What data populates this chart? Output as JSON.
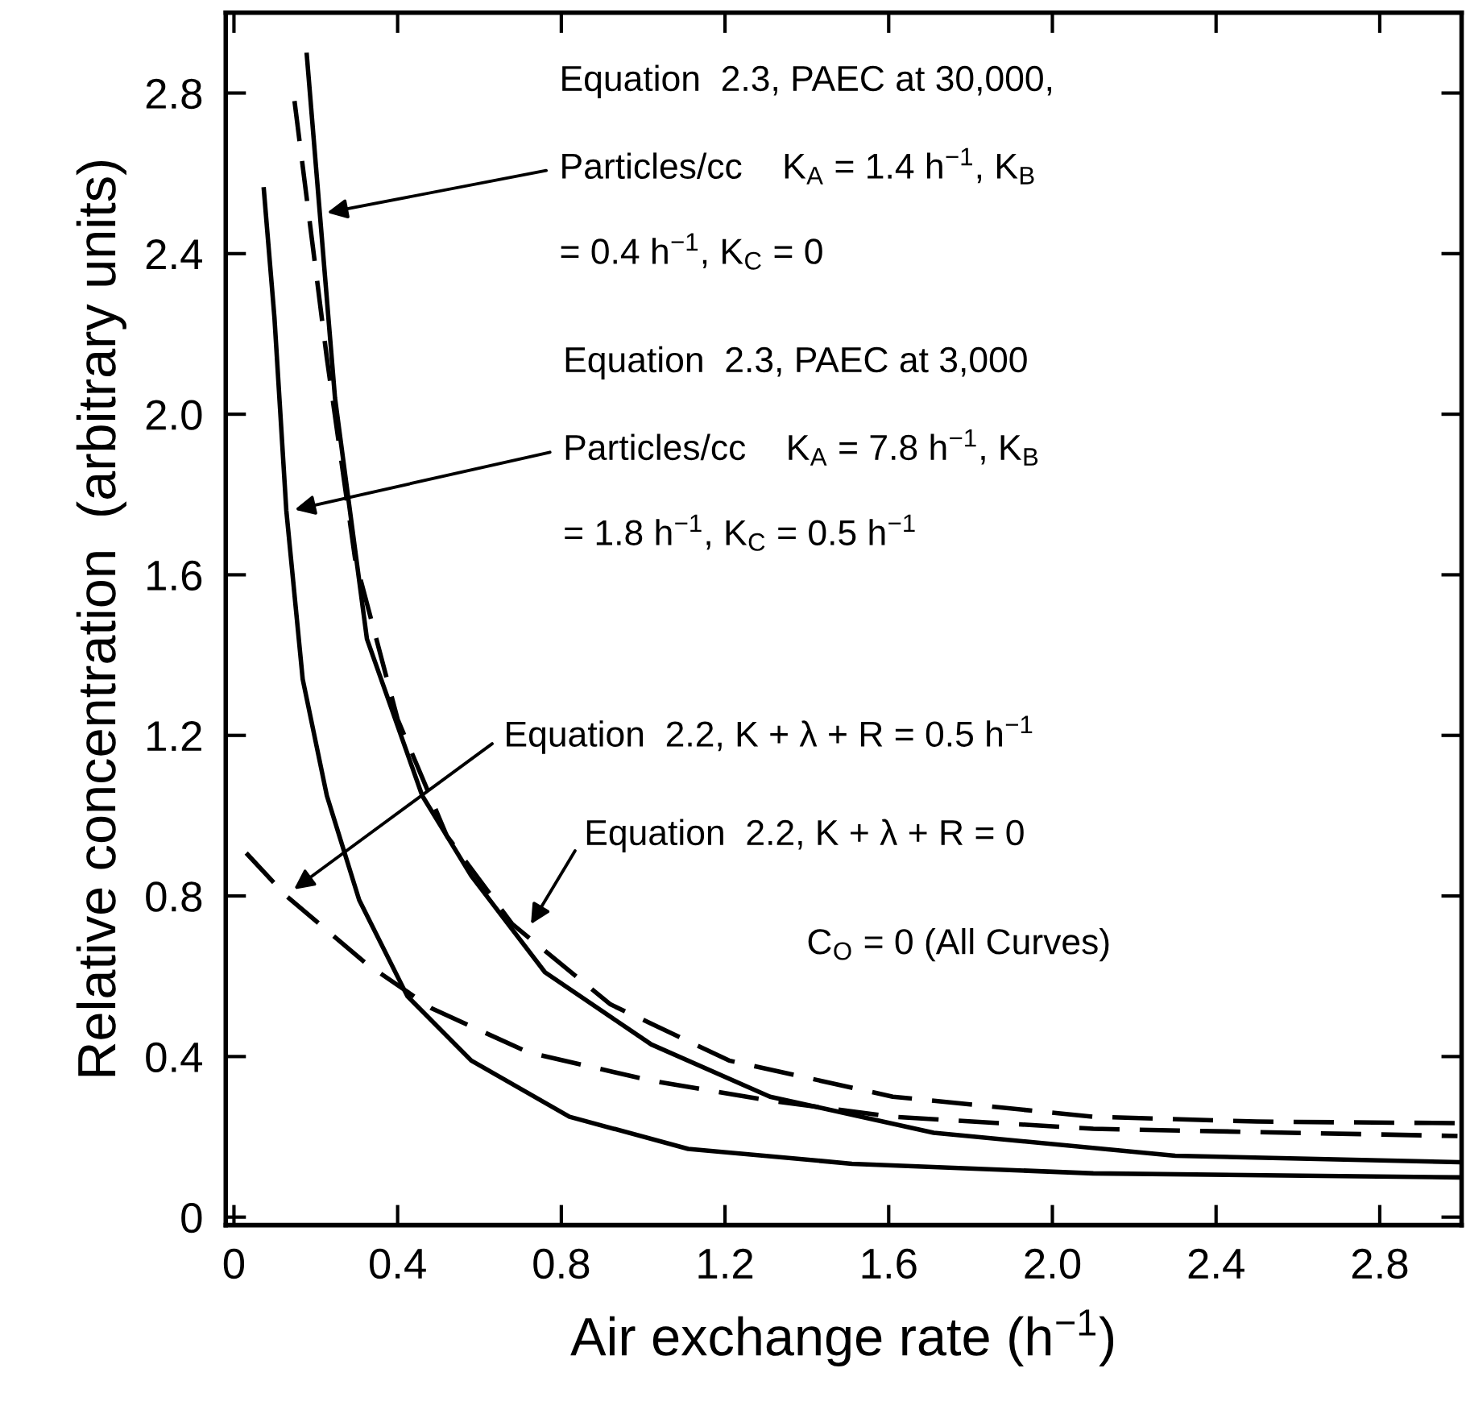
{
  "chart_data": {
    "type": "line",
    "xlabel": "Air exchange rate (h$^{−1}$)",
    "ylabel": "Relative concentration  (arbitrary units)",
    "xlim": [
      -0.02,
      3.0
    ],
    "ylim": [
      -0.02,
      3.0
    ],
    "xticks": [
      0,
      0.4,
      0.8,
      1.2,
      1.6,
      {
        "value": 2,
        "label": "2.0"
      },
      2.4,
      2.8
    ],
    "yticks": [
      0,
      0.4,
      0.8,
      1.2,
      1.6,
      {
        "value": 2,
        "label": "2.0"
      },
      2.4,
      2.8
    ],
    "grid": false,
    "legend": false,
    "marker": "none",
    "series": [
      {
        "color": "#000000",
        "line_style": "solid",
        "x": [
          0.073,
          0.099,
          0.128,
          0.168,
          0.227,
          0.306,
          0.424,
          0.58,
          0.82,
          1.11,
          1.51,
          2.1,
          2.99
        ],
        "values": [
          2.56,
          2.24,
          1.76,
          1.34,
          1.05,
          0.79,
          0.55,
          0.39,
          0.25,
          0.17,
          0.133,
          0.109,
          0.099
        ]
      },
      {
        "color": "#000000",
        "line_style": "solid",
        "x": [
          0.178,
          0.247,
          0.325,
          0.46,
          0.58,
          0.76,
          1.02,
          1.31,
          1.71,
          2.3,
          2.99
        ],
        "values": [
          2.895,
          2.04,
          1.44,
          1.05,
          0.85,
          0.61,
          0.43,
          0.3,
          0.21,
          0.153,
          0.137
        ]
      },
      {
        "color": "#000000",
        "line_style": "dashed",
        "x": [
          0.148,
          0.227,
          0.296,
          0.4,
          0.52,
          0.68,
          0.92,
          1.21,
          1.61,
          2.1,
          2.5,
          2.99
        ],
        "values": [
          2.78,
          2.14,
          1.64,
          1.24,
          0.95,
          0.73,
          0.53,
          0.39,
          0.3,
          0.25,
          0.238,
          0.234
        ]
      },
      {
        "color": "#000000",
        "line_style": "dashed",
        "x": [
          0.03,
          0.128,
          0.325,
          0.483,
          0.72,
          1.02,
          1.31,
          1.61,
          2.1,
          2.99
        ],
        "values": [
          0.907,
          0.8,
          0.63,
          0.52,
          0.41,
          0.34,
          0.29,
          0.25,
          0.22,
          0.202
        ]
      }
    ],
    "annotations": [
      "Equation  2.3, PAEC at 30,000,",
      {
        "text": "Particles/cc    K$_{A}$ = 1.4 h$^{−1}$, K$_{B}$",
        "x": 0.217,
        "y": 2.5
      },
      "= 0.4 h$^{−1}$, K$_{C}$ = 0",
      "Equation  2.3, PAEC at 3,000",
      {
        "text": "Particles/cc    K$_{A}$ = 7.8 h$^{−1}$, K$_{B}$",
        "x": 0.138,
        "y": 1.76
      },
      "= 1.8 h$^{−1}$, K$_{C}$ = 0.5 h$^{−1}$",
      {
        "text": "Equation  2.2, K + λ + R = 0.5 h$^{−1}$",
        "x": 0.138,
        "y": 0.81
      },
      {
        "text": "Equation  2.2, K + λ + R = 0",
        "x": 0.72,
        "y": 0.72
      },
      "C$_{O}$ = 0 (All Curves)"
    ]
  }
}
